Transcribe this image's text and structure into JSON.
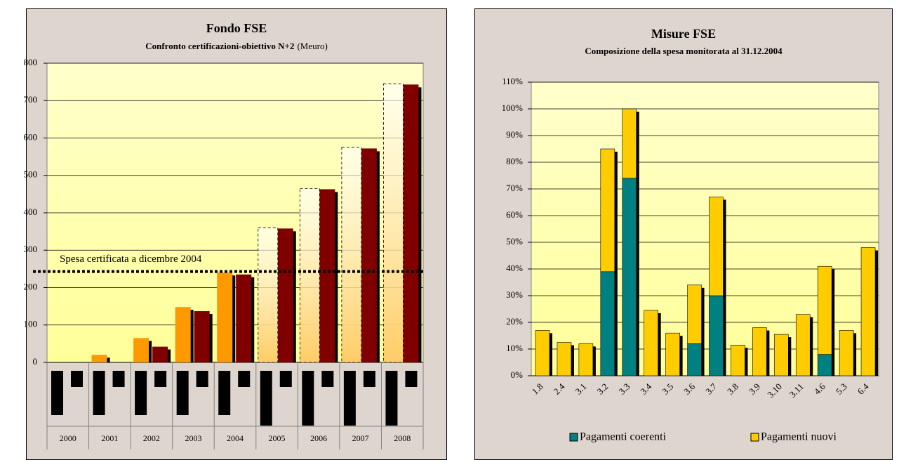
{
  "chart_data": [
    {
      "type": "bar",
      "title": "Fondo FSE",
      "subtitle": "Confronto certificazioni-obiettivo N+2",
      "unit_label": "(Meuro)",
      "categories": [
        "2000",
        "2001",
        "2002",
        "2003",
        "2004",
        "2005",
        "2006",
        "2007",
        "2008"
      ],
      "series": [
        {
          "color": "#ff9900",
          "values": [
            0,
            20,
            65,
            148,
            240,
            null,
            null,
            null,
            null
          ]
        },
        {
          "color": "#800000",
          "values": [
            null,
            0,
            42,
            137,
            235,
            358,
            463,
            572,
            743
          ]
        },
        {
          "color": "#ff9900",
          "style": "dashed",
          "values": [
            null,
            null,
            null,
            null,
            null,
            360,
            465,
            575,
            745
          ]
        }
      ],
      "annotation": {
        "text": "Spesa certificata a dicembre 2004",
        "value": 243
      },
      "ylim": [
        0,
        800
      ],
      "yticks": [
        0,
        100,
        200,
        300,
        400,
        500,
        600,
        700,
        800
      ],
      "grid": true
    },
    {
      "type": "stacked_bar",
      "title": "Misure FSE",
      "subtitle": "Composizione della spesa monitorata al 31.12.2004",
      "categories": [
        "1.8",
        "2.4",
        "3.1",
        "3.2",
        "3.3",
        "3.4",
        "3.5",
        "3.6",
        "3.7",
        "3.8",
        "3.9",
        "3.10",
        "3.11",
        "4.6",
        "5.3",
        "6.4"
      ],
      "series": [
        {
          "name": "Pagamenti coerenti",
          "color": "#008080",
          "values": [
            0,
            0,
            0,
            39,
            74,
            0,
            0,
            12,
            30,
            0,
            0,
            0,
            0,
            8,
            0,
            0
          ]
        },
        {
          "name": "Pagamenti nuovi",
          "color": "#ffcc00",
          "values": [
            17,
            12.5,
            12,
            46,
            26,
            24.5,
            16,
            22,
            37,
            11.5,
            18,
            15.5,
            23,
            33,
            17,
            48
          ]
        }
      ],
      "ylim": [
        0,
        110
      ],
      "yticks": [
        {
          "value": 0,
          "label": "0%"
        },
        {
          "value": 10,
          "label": "10%"
        },
        {
          "value": 20,
          "label": "20%"
        },
        {
          "value": 30,
          "label": "30%"
        },
        {
          "value": 40,
          "label": "40%"
        },
        {
          "value": 50,
          "label": "50%"
        },
        {
          "value": 60,
          "label": "60%"
        },
        {
          "value": 70,
          "label": "70%"
        },
        {
          "value": 80,
          "label": "80%"
        },
        {
          "value": 90,
          "label": "90%"
        },
        {
          "value": 100,
          "label": "100%"
        },
        {
          "value": 110,
          "label": "110%"
        }
      ],
      "grid": true,
      "legend": "bottom"
    }
  ]
}
